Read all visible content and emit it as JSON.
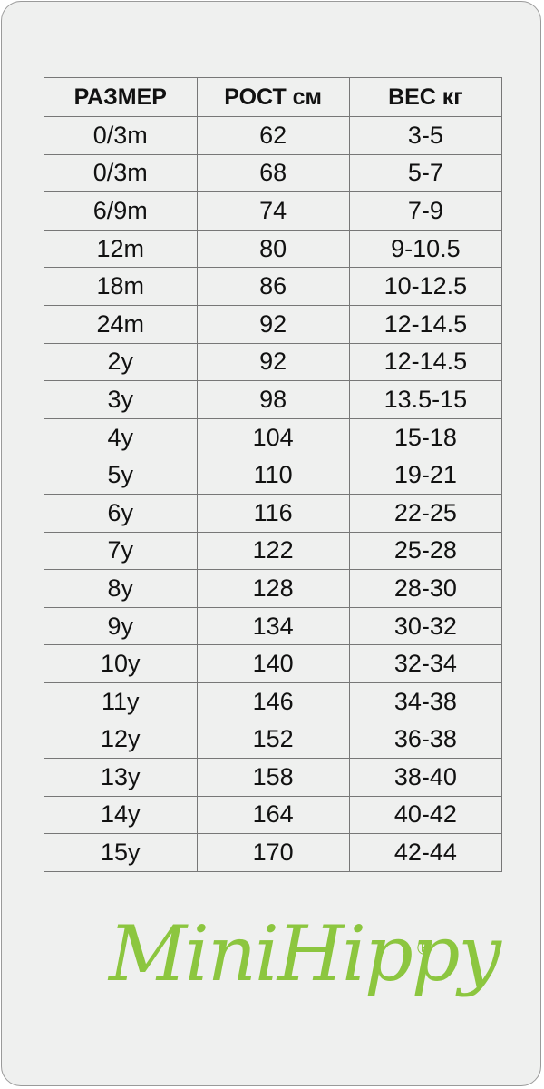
{
  "table": {
    "header": [
      "РАЗМЕР",
      "РОСТ см",
      "ВЕС кг"
    ],
    "rows": [
      [
        "0/3m",
        "62",
        "3-5"
      ],
      [
        "0/3m",
        "68",
        "5-7"
      ],
      [
        "6/9m",
        "74",
        "7-9"
      ],
      [
        "12m",
        "80",
        "9-10.5"
      ],
      [
        "18m",
        "86",
        "10-12.5"
      ],
      [
        "24m",
        "92",
        "12-14.5"
      ],
      [
        "2y",
        "92",
        "12-14.5"
      ],
      [
        "3y",
        "98",
        "13.5-15"
      ],
      [
        "4y",
        "104",
        "15-18"
      ],
      [
        "5y",
        "110",
        "19-21"
      ],
      [
        "6y",
        "116",
        "22-25"
      ],
      [
        "7y",
        "122",
        "25-28"
      ],
      [
        "8y",
        "128",
        "28-30"
      ],
      [
        "9y",
        "134",
        "30-32"
      ],
      [
        "10y",
        "140",
        "32-34"
      ],
      [
        "11y",
        "146",
        "34-38"
      ],
      [
        "12y",
        "152",
        "36-38"
      ],
      [
        "13y",
        "158",
        "38-40"
      ],
      [
        "14y",
        "164",
        "40-42"
      ],
      [
        "15y",
        "170",
        "42-44"
      ]
    ]
  },
  "logo": {
    "text": "MiniHippy",
    "mark": "®"
  }
}
